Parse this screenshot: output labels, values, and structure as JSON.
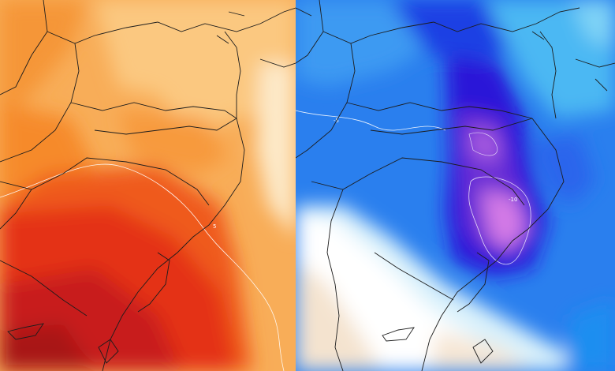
{
  "left_map": {
    "contour_label": "5",
    "colors": [
      "#fde0b0",
      "#fbc27a",
      "#f7a23c",
      "#f47a22",
      "#ef4d1c",
      "#d8261b",
      "#b5161a"
    ]
  },
  "right_map": {
    "contour_label_a": "-5",
    "contour_label_b": "-10",
    "colors": [
      "#ffffff",
      "#bfe8fb",
      "#5fc4f4",
      "#2a8ff0",
      "#1c4ee8",
      "#3514d6",
      "#6a2fd4",
      "#d77ae6"
    ]
  },
  "outline_color": "#1c1c1c",
  "isoline_color": "#ffffff"
}
